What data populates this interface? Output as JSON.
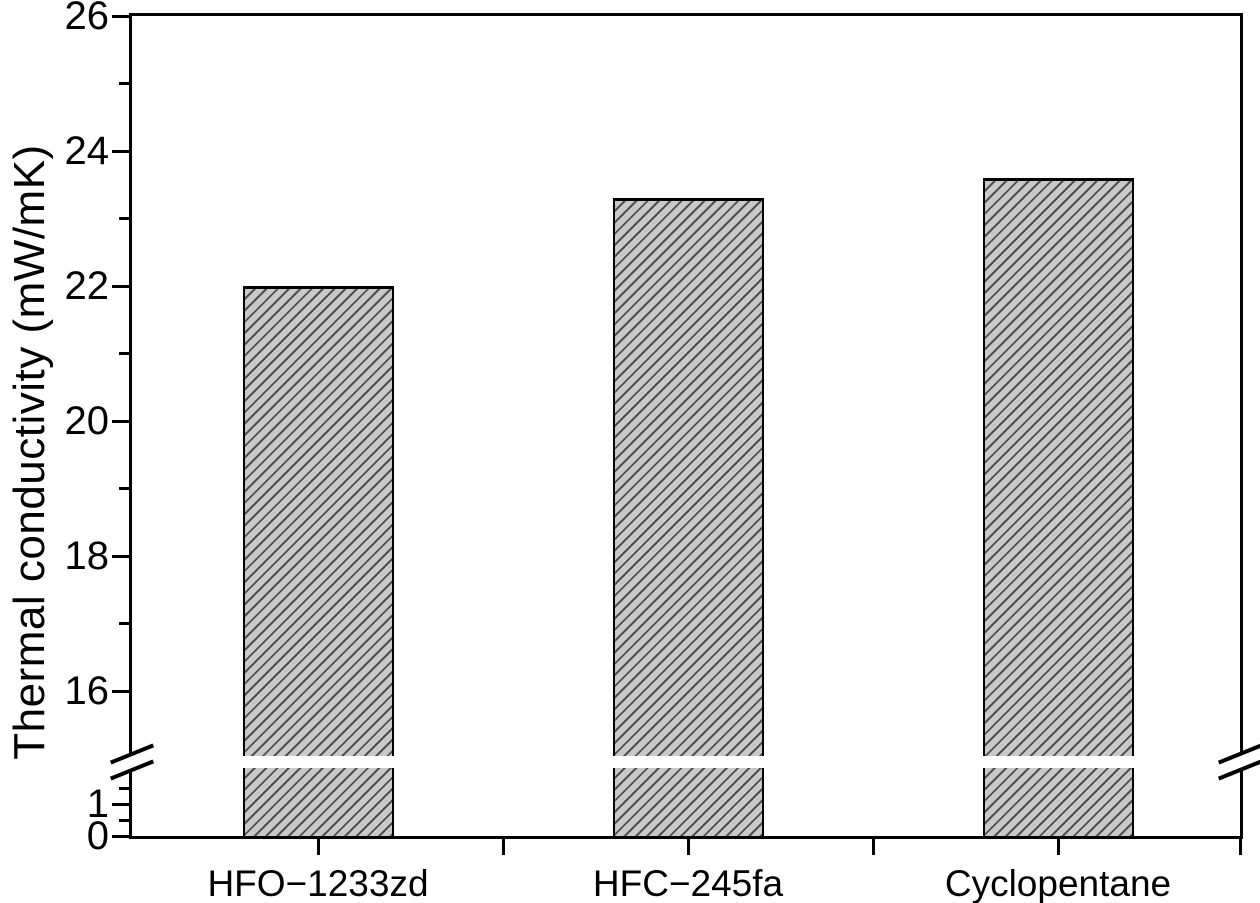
{
  "chart_data": {
    "type": "bar",
    "title": "",
    "xlabel": "",
    "ylabel": "Thermal conductivity (mW/mK)",
    "unit": "mW/mK",
    "categories": [
      "HFO−1233zd",
      "HFC−245fa",
      "Cyclopentane"
    ],
    "values": [
      22.0,
      23.3,
      23.6
    ],
    "series": [
      {
        "name": "Thermal conductivity",
        "values": [
          22.0,
          23.3,
          23.6
        ]
      }
    ],
    "y_axis": {
      "has_break": true,
      "upper": {
        "min": 15,
        "max": 26,
        "major_ticks": [
          26,
          24,
          22,
          20,
          18,
          16
        ],
        "minor_ticks": [
          25,
          23,
          21,
          19,
          17
        ]
      },
      "lower": {
        "min": 0,
        "max": 2,
        "major_ticks": [
          1,
          0
        ],
        "minor_ticks": [
          1.5,
          0.5
        ]
      }
    },
    "x_axis": {
      "tick_positions": "category centers, midpoints and right corner",
      "tick_labels": []
    },
    "grid": false,
    "legend": false,
    "style": {
      "bar_fill": "#c9c9c9",
      "bar_hatch_color": "#4f4f4f",
      "bar_hatch_pattern": "forward-diagonal",
      "bar_border_color": "#000000",
      "axis_color": "#000000",
      "background": "#ffffff"
    }
  }
}
